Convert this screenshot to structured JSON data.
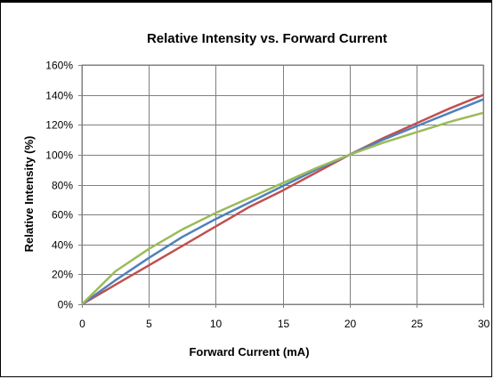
{
  "chart_data": {
    "type": "line",
    "title": "Relative Intensity vs. Forward Current",
    "xlabel": "Forward Current (mA)",
    "ylabel": "Relative Intensity (%)",
    "xlim": [
      0,
      30
    ],
    "ylim": [
      0,
      160
    ],
    "xticks": [
      0,
      5,
      10,
      15,
      20,
      25,
      30
    ],
    "yticks": [
      0,
      20,
      40,
      60,
      80,
      100,
      120,
      140,
      160
    ],
    "ytick_labels": [
      "0%",
      "20%",
      "40%",
      "60%",
      "80%",
      "100%",
      "120%",
      "140%",
      "160%"
    ],
    "grid": true,
    "legend": "none",
    "series": [
      {
        "color": "#c0504d",
        "x": [
          0,
          2.5,
          5,
          7.5,
          10,
          12.5,
          15,
          17.5,
          20,
          22.5,
          25,
          27.5,
          30
        ],
        "values": [
          0,
          13,
          26,
          39,
          52,
          65,
          76,
          88,
          100,
          111,
          121,
          131,
          140
        ]
      },
      {
        "color": "#4f81bd",
        "x": [
          0,
          2.5,
          5,
          7.5,
          10,
          12.5,
          15,
          17.5,
          20,
          22.5,
          25,
          27.5,
          30
        ],
        "values": [
          0,
          16,
          31,
          45,
          57,
          68,
          79,
          90,
          100,
          110,
          119,
          128,
          137
        ]
      },
      {
        "color": "#9bbb59",
        "x": [
          0,
          2.5,
          5,
          7.5,
          10,
          12.5,
          15,
          17.5,
          20,
          22.5,
          25,
          27.5,
          30
        ],
        "values": [
          0,
          22,
          37,
          50,
          61,
          71,
          81,
          91,
          100,
          108,
          115,
          122,
          128
        ]
      }
    ]
  }
}
